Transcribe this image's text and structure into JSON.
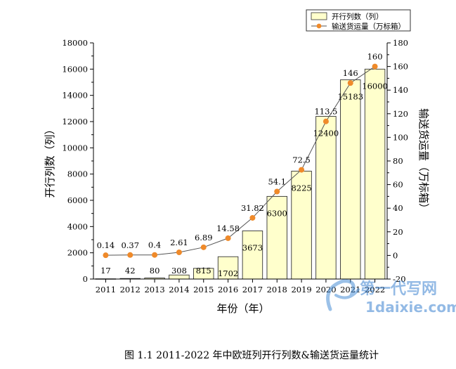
{
  "chart_data": {
    "type": "bar",
    "title": "",
    "caption": "图 1.1 2011-2022 年中欧班列开行列数&输送货运量统计",
    "xlabel": "年份（年）",
    "ylabel": "开行列数（列）",
    "y2label": "输送货运量（万标箱）",
    "categories": [
      "2011",
      "2012",
      "2013",
      "2014",
      "2015",
      "2016",
      "2017",
      "2018",
      "2019",
      "2020",
      "2021",
      "2022"
    ],
    "ylim": [
      0,
      18000
    ],
    "yticks": [
      0,
      2000,
      4000,
      6000,
      8000,
      10000,
      12000,
      14000,
      16000,
      18000
    ],
    "y2lim": [
      -20,
      180
    ],
    "y2ticks": [
      -20,
      0,
      20,
      40,
      60,
      80,
      100,
      120,
      140,
      160,
      180
    ],
    "series": [
      {
        "name": "开行列数（列）",
        "type": "bar",
        "axis": "left",
        "values": [
          17,
          42,
          80,
          308,
          815,
          1702,
          3673,
          6300,
          8225,
          12400,
          15183,
          16000
        ],
        "labels": [
          "17",
          "42",
          "80",
          "308",
          "815",
          "1702",
          "3673",
          "6300",
          "8225",
          "12400",
          "15183",
          "16000"
        ]
      },
      {
        "name": "输送货运量（万标箱）",
        "type": "line",
        "axis": "right",
        "values": [
          0.14,
          0.37,
          0.4,
          2.61,
          6.89,
          14.58,
          31.82,
          54.1,
          72.5,
          113.5,
          146,
          160
        ],
        "labels": [
          "0.14",
          "0.37",
          "0.4",
          "2.61",
          "6.89",
          "14.58",
          "31.82",
          "54.1",
          "72.5",
          "113.5",
          "146",
          "160"
        ]
      }
    ],
    "grid": false,
    "legend": "top-right",
    "colors": {
      "bar_fill": "#ffffcc",
      "bar_stroke": "#333333",
      "line": "#555555",
      "marker": "#ef8a2a"
    }
  },
  "watermark": {
    "brand": "第一代写网",
    "url": "1daixie.com"
  }
}
